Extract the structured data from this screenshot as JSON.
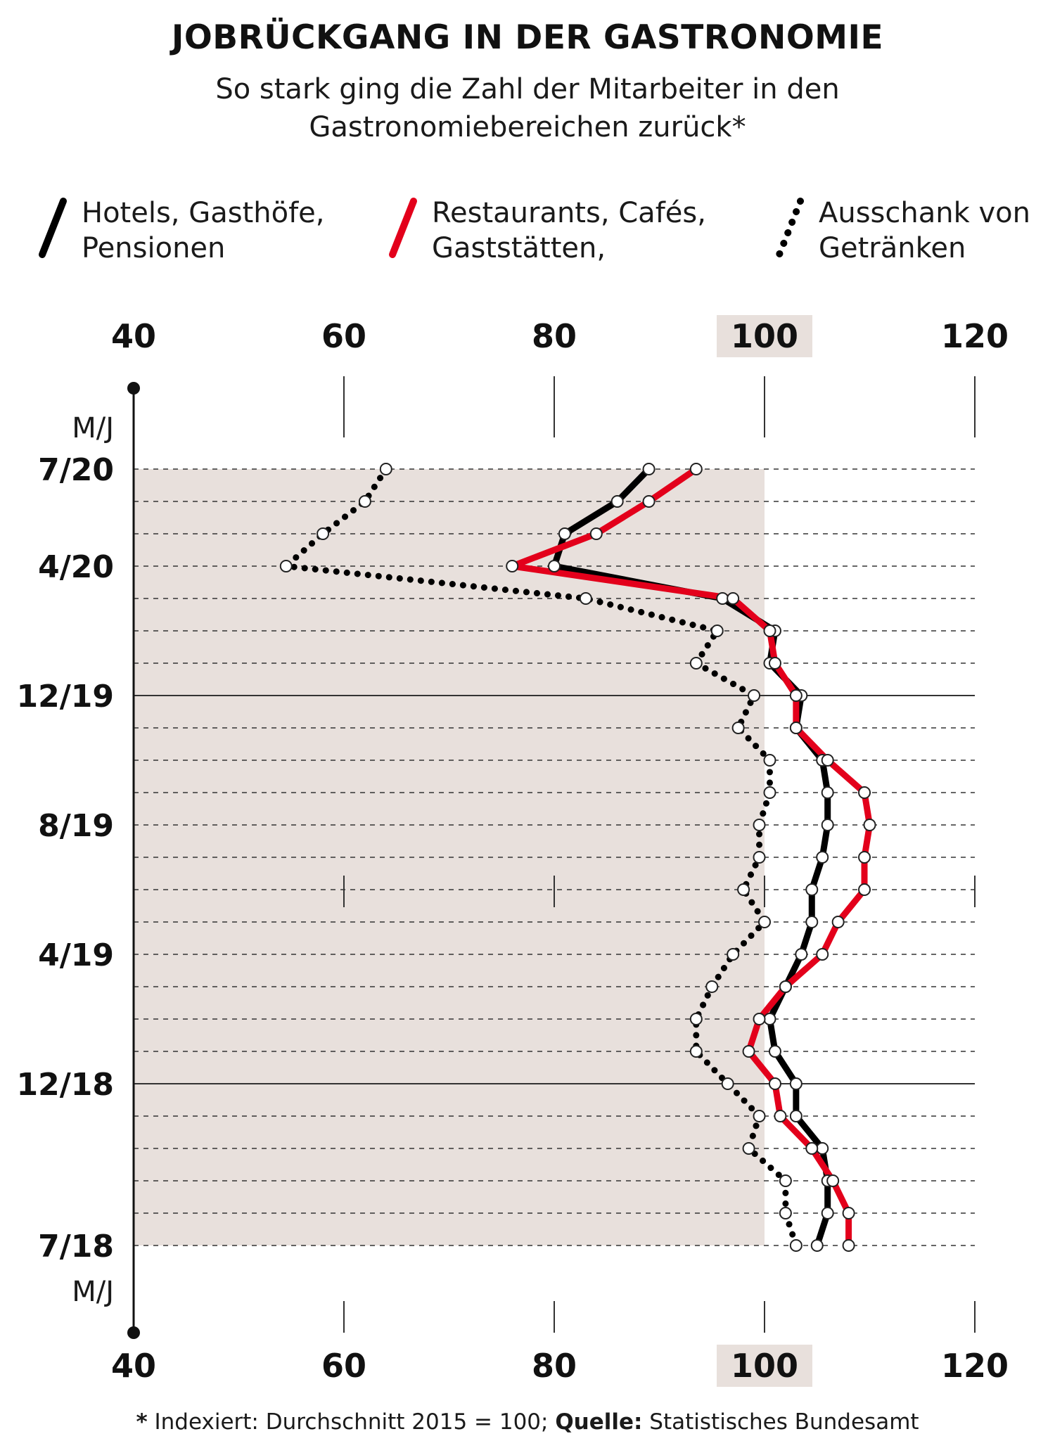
{
  "title": "JOBRÜCKGANG IN DER GASTRONOMIE",
  "subtitle_line1": "So stark ging die Zahl der Mitarbeiter in den",
  "subtitle_line2": "Gastronomiebereichen zurück*",
  "legend": [
    {
      "line1": "Hotels, Gasthöfe,",
      "line2": "Pensionen"
    },
    {
      "line1": "Restaurants, Cafés,",
      "line2": "Gaststätten,"
    },
    {
      "line1": "Ausschank von",
      "line2": "Getränken"
    }
  ],
  "footnote": {
    "star": "*",
    "text1": " Indexiert: Durchschnitt 2015 = 100; ",
    "source_label": "Quelle:",
    "text2": " Statistisches Bundesamt"
  },
  "colors": {
    "hotels": "#000000",
    "restaurants": "#e3001b",
    "ausschank": "#000000",
    "shade": "#e8e0dc"
  },
  "chart_data": {
    "type": "line",
    "orientation": "vertical-time",
    "x_axis_ticks": [
      40,
      60,
      80,
      100,
      120
    ],
    "x_highlight_tick": 100,
    "xlim": [
      40,
      120
    ],
    "y_axis_label": "M/J",
    "y_tick_labels": [
      "7/20",
      "4/20",
      "12/19",
      "8/19",
      "4/19",
      "12/18",
      "7/18"
    ],
    "months": [
      "7/20",
      "6/20",
      "5/20",
      "4/20",
      "3/20",
      "2/20",
      "1/20",
      "12/19",
      "11/19",
      "10/19",
      "9/19",
      "8/19",
      "7/19",
      "6/19",
      "5/19",
      "4/19",
      "3/19",
      "2/19",
      "1/19",
      "12/18",
      "11/18",
      "10/18",
      "9/18",
      "8/18",
      "7/18"
    ],
    "shaded_below": 100,
    "series": [
      {
        "name": "Hotels, Gasthöfe, Pensionen",
        "style": "solid",
        "color": "#000000",
        "values": [
          89,
          86,
          81,
          80,
          96,
          101,
          100.5,
          103.5,
          103,
          105.5,
          106,
          106,
          105.5,
          104.5,
          104.5,
          103.5,
          102,
          100.5,
          101,
          103,
          103,
          105.5,
          106,
          106,
          105
        ]
      },
      {
        "name": "Restaurants, Cafés, Gaststätten",
        "style": "solid",
        "color": "#e3001b",
        "values": [
          93.5,
          89,
          84,
          76,
          97,
          100.5,
          101,
          103,
          103,
          106,
          109.5,
          110,
          109.5,
          109.5,
          107,
          105.5,
          102,
          99.5,
          98.5,
          101,
          101.5,
          104.5,
          106.5,
          108,
          108
        ]
      },
      {
        "name": "Ausschank von Getränken",
        "style": "dotted",
        "color": "#000000",
        "values": [
          64,
          62,
          58,
          54.5,
          83,
          95.5,
          93.5,
          99,
          97.5,
          100.5,
          100.5,
          99.5,
          99.5,
          98,
          100,
          97,
          95,
          93.5,
          93.5,
          96.5,
          99.5,
          98.5,
          102,
          102,
          103
        ]
      }
    ]
  }
}
